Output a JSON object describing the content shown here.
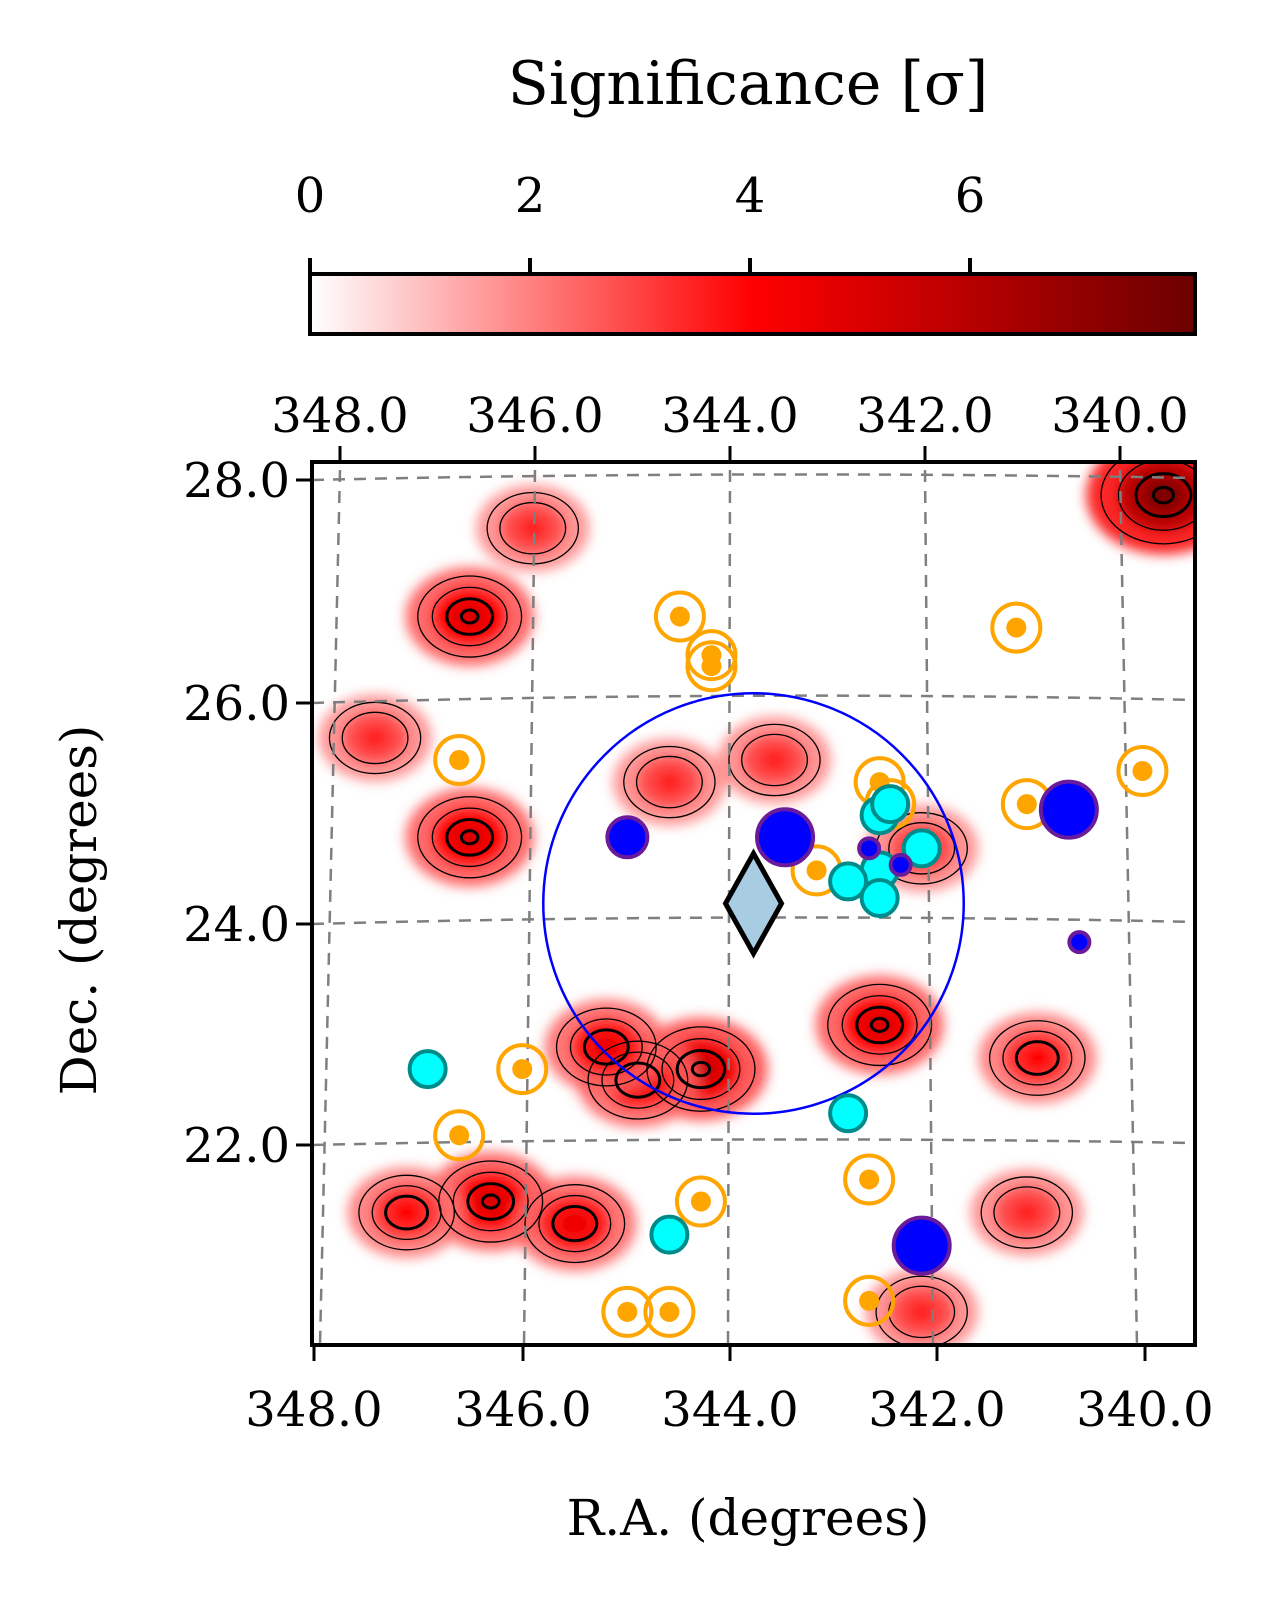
{
  "chart_data": {
    "type": "heatmap",
    "colorbar": {
      "label": "Significance [σ]",
      "ticks": [
        "0",
        "2",
        "4",
        "6"
      ],
      "range": [
        0,
        8
      ],
      "colormap": [
        "#ffffff",
        "#ff0000",
        "#6b0000"
      ]
    },
    "xlabel": "R.A. (degrees)",
    "ylabel": "Dec. (degrees)",
    "xticks_bottom": [
      "348.0",
      "346.0",
      "344.0",
      "342.0",
      "340.0"
    ],
    "xticks_top": [
      "348.0",
      "346.0",
      "344.0",
      "342.0",
      "340.0"
    ],
    "yticks": [
      "28.0",
      "26.0",
      "24.0",
      "22.0"
    ],
    "xlim": [
      348.0,
      339.6
    ],
    "ylim": [
      20.1,
      28.1
    ],
    "grid": true,
    "contour_levels": [
      2,
      3,
      4,
      5
    ],
    "hotspots": [
      {
        "ra": 346.5,
        "dec": 26.7,
        "sigma": 5.0
      },
      {
        "ra": 346.5,
        "dec": 24.7,
        "sigma": 5.0
      },
      {
        "ra": 344.3,
        "dec": 22.6,
        "sigma": 5.5
      },
      {
        "ra": 344.9,
        "dec": 22.5,
        "sigma": 4.5
      },
      {
        "ra": 345.2,
        "dec": 22.8,
        "sigma": 4.5
      },
      {
        "ra": 342.6,
        "dec": 23.0,
        "sigma": 5.0
      },
      {
        "ra": 346.3,
        "dec": 21.4,
        "sigma": 5.0
      },
      {
        "ra": 347.1,
        "dec": 21.3,
        "sigma": 4.0
      },
      {
        "ra": 345.5,
        "dec": 21.2,
        "sigma": 4.5
      },
      {
        "ra": 339.9,
        "dec": 27.8,
        "sigma": 7.5
      },
      {
        "ra": 341.1,
        "dec": 22.7,
        "sigma": 4.0
      },
      {
        "ra": 344.6,
        "dec": 25.2,
        "sigma": 3.5
      },
      {
        "ra": 343.6,
        "dec": 25.4,
        "sigma": 3.5
      },
      {
        "ra": 347.4,
        "dec": 25.6,
        "sigma": 3.5
      },
      {
        "ra": 345.9,
        "dec": 27.5,
        "sigma": 3.5
      },
      {
        "ra": 342.2,
        "dec": 24.6,
        "sigma": 3.5
      },
      {
        "ra": 341.2,
        "dec": 21.3,
        "sigma": 3.5
      },
      {
        "ra": 342.2,
        "dec": 20.4,
        "sigma": 3.5
      }
    ],
    "center_marker": {
      "ra": 343.8,
      "dec": 24.1,
      "shape": "diamond",
      "color": "#a8cde2"
    },
    "region_circle": {
      "ra": 343.8,
      "dec": 24.1,
      "radius_deg": 2.0,
      "color": "#0000ff"
    },
    "orange_sources": [
      {
        "ra": 344.5,
        "dec": 26.7
      },
      {
        "ra": 344.2,
        "dec": 26.35
      },
      {
        "ra": 344.2,
        "dec": 26.25
      },
      {
        "ra": 341.3,
        "dec": 26.6
      },
      {
        "ra": 346.6,
        "dec": 25.4
      },
      {
        "ra": 342.6,
        "dec": 25.2
      },
      {
        "ra": 342.5,
        "dec": 25.0
      },
      {
        "ra": 341.2,
        "dec": 25.0
      },
      {
        "ra": 340.1,
        "dec": 25.3
      },
      {
        "ra": 343.2,
        "dec": 24.4
      },
      {
        "ra": 346.0,
        "dec": 22.6
      },
      {
        "ra": 346.6,
        "dec": 22.0
      },
      {
        "ra": 342.7,
        "dec": 21.6
      },
      {
        "ra": 344.3,
        "dec": 21.4
      },
      {
        "ra": 344.6,
        "dec": 20.4
      },
      {
        "ra": 345.0,
        "dec": 20.4
      },
      {
        "ra": 342.7,
        "dec": 20.5
      }
    ],
    "cyan_sources": [
      {
        "ra": 342.6,
        "dec": 24.9
      },
      {
        "ra": 342.5,
        "dec": 25.0
      },
      {
        "ra": 342.2,
        "dec": 24.6
      },
      {
        "ra": 342.6,
        "dec": 24.4
      },
      {
        "ra": 342.9,
        "dec": 24.3
      },
      {
        "ra": 342.6,
        "dec": 24.15
      },
      {
        "ra": 346.9,
        "dec": 22.6
      },
      {
        "ra": 342.9,
        "dec": 22.2
      },
      {
        "ra": 344.6,
        "dec": 21.1
      }
    ],
    "blue_sources": [
      {
        "ra": 345.0,
        "dec": 24.7,
        "size": "medium"
      },
      {
        "ra": 343.5,
        "dec": 24.7,
        "size": "large"
      },
      {
        "ra": 342.7,
        "dec": 24.6,
        "size": "small"
      },
      {
        "ra": 342.4,
        "dec": 24.45,
        "size": "small"
      },
      {
        "ra": 340.8,
        "dec": 24.95,
        "size": "large"
      },
      {
        "ra": 340.7,
        "dec": 23.75,
        "size": "small"
      },
      {
        "ra": 342.2,
        "dec": 21.0,
        "size": "large"
      }
    ],
    "colors": {
      "orange": "#ffa500",
      "cyan": "#00ffff",
      "cyan_edge": "#008b8b",
      "blue": "#0000ff",
      "blue_edge": "#6a1b9a",
      "grid": "#808080",
      "contour": "#000000"
    }
  }
}
